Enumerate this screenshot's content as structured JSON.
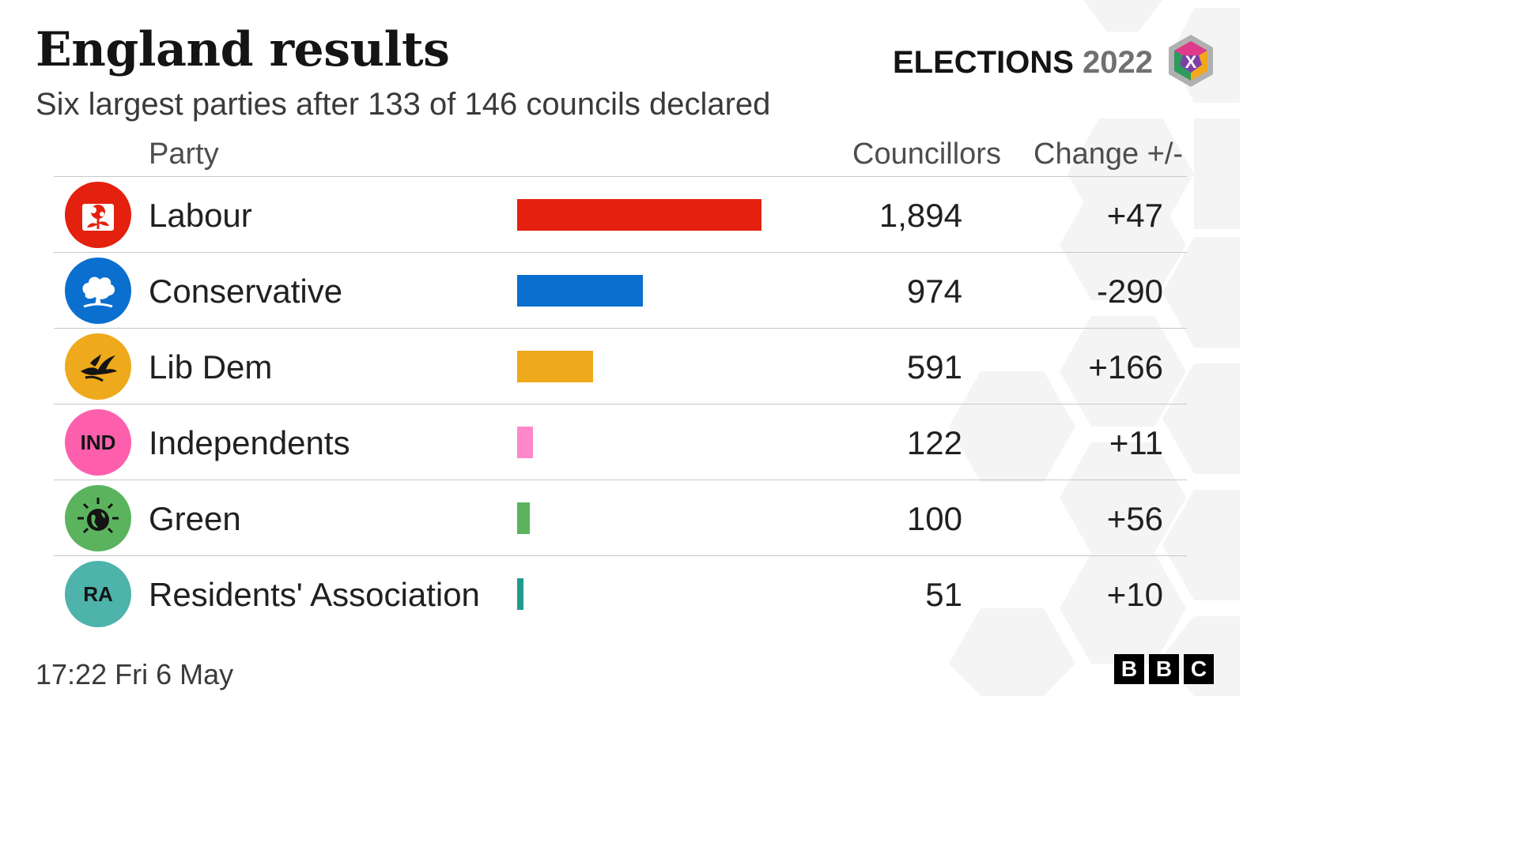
{
  "header": {
    "title": "England results",
    "subtitle": "Six largest parties after 133 of 146 councils declared",
    "brand_word": "ELECTIONS",
    "brand_year": "2022",
    "badge_mark": "X"
  },
  "columns": {
    "party": "Party",
    "councillors": "Councillors",
    "change": "Change +/-"
  },
  "parties": [
    {
      "name": "Labour",
      "councillors": "1,894",
      "change": "+47",
      "color": "#e4200e",
      "icon": "rose-icon",
      "logo_text": ""
    },
    {
      "name": "Conservative",
      "councillors": "974",
      "change": "-290",
      "color": "#0a6fcf",
      "icon": "oak-tree-icon",
      "logo_text": ""
    },
    {
      "name": "Lib Dem",
      "councillors": "591",
      "change": "+166",
      "color": "#eea91c",
      "icon": "bird-icon",
      "logo_text": ""
    },
    {
      "name": "Independents",
      "councillors": "122",
      "change": "+11",
      "color": "#fd88ca",
      "logo_bg": "#fd5fad",
      "icon": "",
      "logo_text": "IND"
    },
    {
      "name": "Green",
      "councillors": "100",
      "change": "+56",
      "color": "#5bb35e",
      "icon": "earth-icon",
      "logo_text": ""
    },
    {
      "name": "Residents' Association",
      "councillors": "51",
      "change": "+10",
      "color": "#1e9b8e",
      "logo_bg": "#4db3ab",
      "icon": "",
      "logo_text": "RA"
    }
  ],
  "chart_data": {
    "type": "bar",
    "title": "England results",
    "subtitle": "Six largest parties after 133 of 146 councils declared",
    "categories": [
      "Labour",
      "Conservative",
      "Lib Dem",
      "Independents",
      "Green",
      "Residents' Association"
    ],
    "values": [
      1894,
      974,
      591,
      122,
      100,
      51
    ],
    "change": [
      47,
      -290,
      166,
      11,
      56,
      10
    ],
    "xlabel": "",
    "ylabel": "Councillors",
    "xlim": [
      0,
      1894
    ],
    "grid": false
  },
  "footer": {
    "timestamp": "17:22 Fri  6 May",
    "bbc_letters": [
      "B",
      "B",
      "C"
    ]
  }
}
